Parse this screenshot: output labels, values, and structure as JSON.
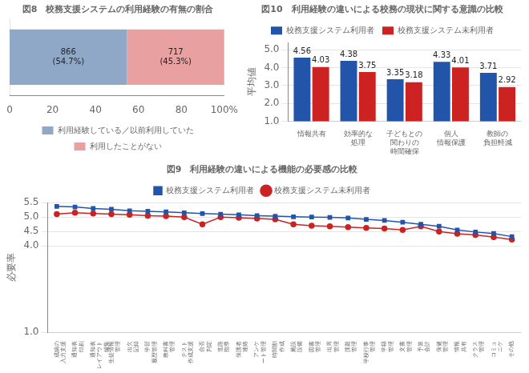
{
  "chart_data": [
    {
      "type": "bar",
      "orientation": "horizontal",
      "stacked": true,
      "title": "図8　校務支援システムの利用経験の有無の割合",
      "categories": [
        null
      ],
      "series": [
        {
          "name": "利用経験している／以前利用していた",
          "color": "#8fa8c8",
          "values": [
            54.706253948
          ],
          "value_labels": [
            "866\n(54.7%)"
          ]
        },
        {
          "name": "利用したことがない",
          "color": "#e8a0a0",
          "values": [
            45.293746052
          ],
          "value_labels": [
            "717\n(45.3%)"
          ]
        }
      ],
      "xlim": [
        0,
        100
      ],
      "xticks": [
        0,
        20,
        40,
        60,
        80,
        {
          "value": 100,
          "label": "100%"
        }
      ],
      "grid": false,
      "legend": "bottom",
      "data_labels": true,
      "tick_labels": "x"
    },
    {
      "type": "line",
      "title": "図9　利用経験の違いによる機能の必要感の比較",
      "ylabel": "必要率",
      "categories": [
        "成績の\n入力支援",
        "通知表\n印刷",
        "通知表\nレイアウト\n編集",
        "生徒情報\n管理",
        "出欠\n記録",
        "学習\n履歴管理",
        "教科書\n管理",
        "テスト\n作成支援",
        "合否\n判定",
        "進路\n指導",
        "保護者\n連絡",
        "アンケ\nート管理",
        "時間割\n作成",
        "施設\n設備",
        "図書\n管理",
        "出席\n管理",
        "課題\n管理",
        "学校行事\n管理",
        "学籍\n管理",
        "文書\n管理",
        "予算\n会計",
        "保健\n管理",
        "情報\n共有",
        "クラス\n管理",
        "コミュ\nニケ",
        "その他"
      ],
      "series": [
        {
          "name": "校務支援システム利用者",
          "color": "#2255aa",
          "marker": "square",
          "values": [
            5.37,
            5.35,
            5.3,
            5.27,
            5.22,
            5.2,
            5.18,
            5.15,
            5.12,
            5.1,
            5.08,
            5.05,
            5.03,
            5.01,
            5.0,
            4.99,
            4.97,
            4.92,
            4.88,
            4.82,
            4.75,
            4.68,
            4.55,
            4.48,
            4.43,
            4.32
          ]
        },
        {
          "name": "校務支援システム未利用者",
          "color": "#cc2222",
          "marker": "circle",
          "values": [
            5.1,
            5.15,
            5.12,
            5.1,
            5.08,
            5.05,
            5.03,
            5.0,
            4.75,
            5.0,
            4.98,
            4.95,
            4.92,
            4.75,
            4.7,
            4.68,
            4.65,
            4.62,
            4.6,
            4.55,
            4.68,
            4.5,
            4.42,
            4.38,
            4.3,
            4.22
          ]
        }
      ],
      "ylim": [
        1.0,
        5.5
      ],
      "yticks": [
        {
          "value": 1.0,
          "label": "1.0"
        },
        {
          "value": 4.0,
          "label": "4.0"
        },
        4.5,
        {
          "value": 5.0,
          "label": "5.0"
        },
        5.5
      ],
      "grid": true,
      "legend": "top"
    },
    {
      "type": "bar",
      "title": "図10　利用経験の違いによる校務の現状に関する意識の比較",
      "ylabel": "平均値",
      "categories": [
        "情報共有",
        "効率的な\n処理",
        "子どもとの\n関わりの\n時間確保",
        "個人\n情報保護",
        "教師の\n負担軽減"
      ],
      "series": [
        {
          "name": "校務支援システム利用者",
          "color": "#2255aa",
          "values": [
            4.56,
            4.38,
            3.35,
            4.33,
            3.71
          ]
        },
        {
          "name": "校務支援システム未利用者",
          "color": "#cc2222",
          "values": [
            4.03,
            3.75,
            3.18,
            4.01,
            2.92
          ]
        }
      ],
      "ylim": [
        1.0,
        5.4
      ],
      "yticks": [
        {
          "value": 1.0,
          "label": "1.0"
        },
        {
          "value": 2.0,
          "label": "2.0"
        },
        {
          "value": 3.0,
          "label": "3.0"
        },
        {
          "value": 4.0,
          "label": "4.0"
        },
        {
          "value": 5.0,
          "label": "5.0"
        }
      ],
      "grid": true,
      "legend": "top",
      "data_labels": true
    }
  ]
}
